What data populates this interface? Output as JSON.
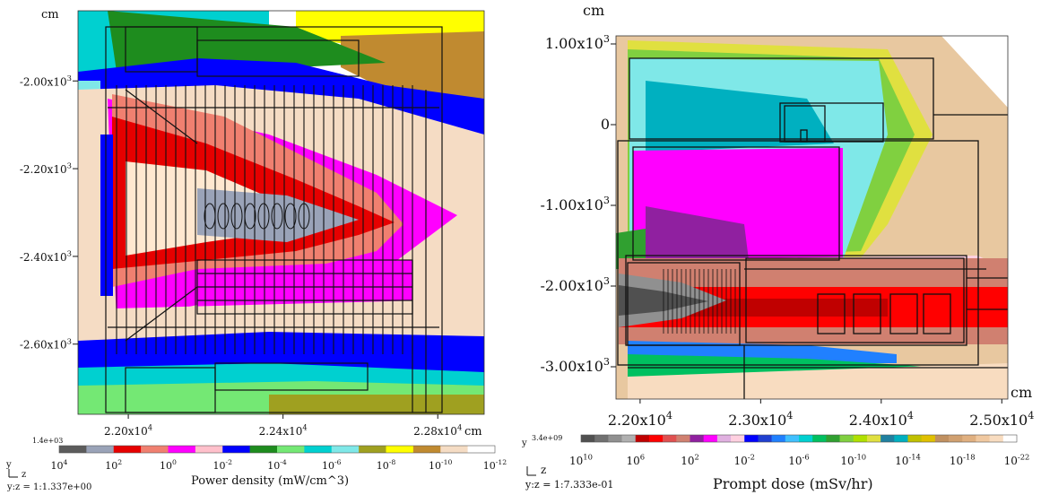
{
  "chart_data": [
    {
      "type": "heatmap",
      "title": "",
      "xlabel": "cm",
      "ylabel": "cm",
      "x_ticks": [
        "2.20x10^4",
        "2.24x10^4",
        "2.28x10^4"
      ],
      "y_ticks": [
        "-2.00x10^3",
        "-2.20x10^3",
        "-2.40x10^3",
        "-2.60x10^3"
      ],
      "x_tick_values": [
        22000,
        22400,
        22800
      ],
      "y_tick_values": [
        -2000,
        -2200,
        -2400,
        -2600
      ],
      "xlim": [
        21870,
        22920
      ],
      "ylim": [
        -2760,
        -1840
      ],
      "colorbar": {
        "label": "Power density (mW/cm^3)",
        "max_label": "1.4e+03",
        "tick_labels": [
          "10^4",
          "10^2",
          "10^0",
          "10^-2",
          "10^-4",
          "10^-6",
          "10^-8",
          "10^-10",
          "10^-12"
        ],
        "colors": [
          "#5c5c5c",
          "#9aa3b8",
          "#e60000",
          "#f08070",
          "#ff00ff",
          "#ffc0cb",
          "#0000ff",
          "#1e8c1e",
          "#74e874",
          "#00d0d0",
          "#7fe8e8",
          "#9fa020",
          "#ffff00",
          "#c08a30",
          "#f5dcc4",
          "#ffffff"
        ]
      },
      "axis_indicator": {
        "y": "y",
        "z": "z",
        "ratio": "y:z = 1:1.337e+00"
      }
    },
    {
      "type": "heatmap",
      "title": "",
      "xlabel": "cm",
      "ylabel": "cm",
      "x_ticks": [
        "2.20x10^4",
        "2.30x10^4",
        "2.40x10^4",
        "2.50x10^4"
      ],
      "y_ticks": [
        "1.00x10^3",
        "0",
        "-1.00x10^3",
        "-2.00x10^3",
        "-3.00x10^3"
      ],
      "x_tick_values": [
        22000,
        23000,
        24000,
        25000
      ],
      "y_tick_values": [
        1000,
        0,
        -1000,
        -2000,
        -3000
      ],
      "xlim": [
        21800,
        25050
      ],
      "ylim": [
        -3400,
        1100
      ],
      "colorbar": {
        "label": "Prompt dose (mSv/hr)",
        "max_label": "3.4e+09",
        "tick_labels": [
          "10^10",
          "10^6",
          "10^2",
          "10^-2",
          "10^-6",
          "10^-10",
          "10^-14",
          "10^-18",
          "10^-22"
        ],
        "colors": [
          "#505050",
          "#707070",
          "#909090",
          "#b0b0b0",
          "#c00000",
          "#ff0000",
          "#e05050",
          "#d08070",
          "#9020a0",
          "#ff00ff",
          "#e0b0e0",
          "#ffd0e0",
          "#0000ff",
          "#2040d0",
          "#2080ff",
          "#40c0ff",
          "#00d0d0",
          "#00c060",
          "#30a030",
          "#80d040",
          "#b0e000",
          "#e0e040",
          "#2080a0",
          "#00b0c0",
          "#c0c000",
          "#e0c000",
          "#c09060",
          "#d0a070",
          "#e0b080",
          "#f0c8a0",
          "#f8dcc0",
          "#ffffff"
        ]
      },
      "axis_indicator": {
        "y": "y",
        "z": "z",
        "ratio": "y:z = 1:7.333e-01"
      }
    }
  ]
}
